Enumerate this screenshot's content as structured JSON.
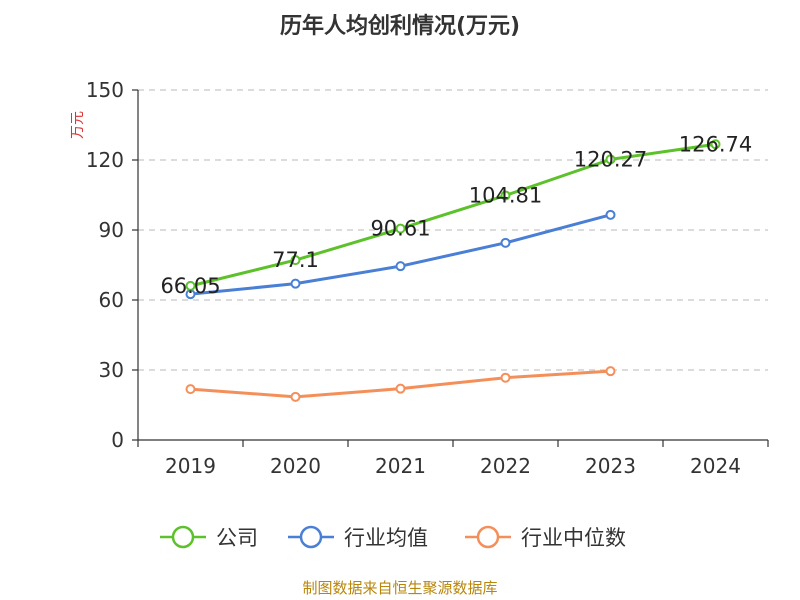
{
  "chart_data": {
    "type": "line",
    "title": "历年人均创利情况(万元)",
    "ylabel": "万元",
    "xlabel": "",
    "categories": [
      "2019",
      "2020",
      "2021",
      "2022",
      "2023",
      "2024"
    ],
    "ylim": [
      0,
      150
    ],
    "yticks": [
      0,
      30,
      60,
      90,
      120,
      150
    ],
    "grid": true,
    "legend_position": "bottom",
    "series": [
      {
        "name": "公司",
        "color": "#5cc12a",
        "values": [
          66.05,
          77.1,
          90.61,
          104.81,
          120.27,
          126.74
        ],
        "labels": [
          "66.05",
          "77.1",
          "90.61",
          "104.81",
          "120.27",
          "126.74"
        ]
      },
      {
        "name": "行业均值",
        "color": "#4a7fd6",
        "values": [
          62.5,
          67,
          74.5,
          84.5,
          96.5,
          null
        ]
      },
      {
        "name": "行业中位数",
        "color": "#f58f5a",
        "values": [
          21.8,
          18.5,
          22,
          26.7,
          29.5,
          null
        ]
      }
    ]
  },
  "source_text": "制图数据来自恒生聚源数据库"
}
